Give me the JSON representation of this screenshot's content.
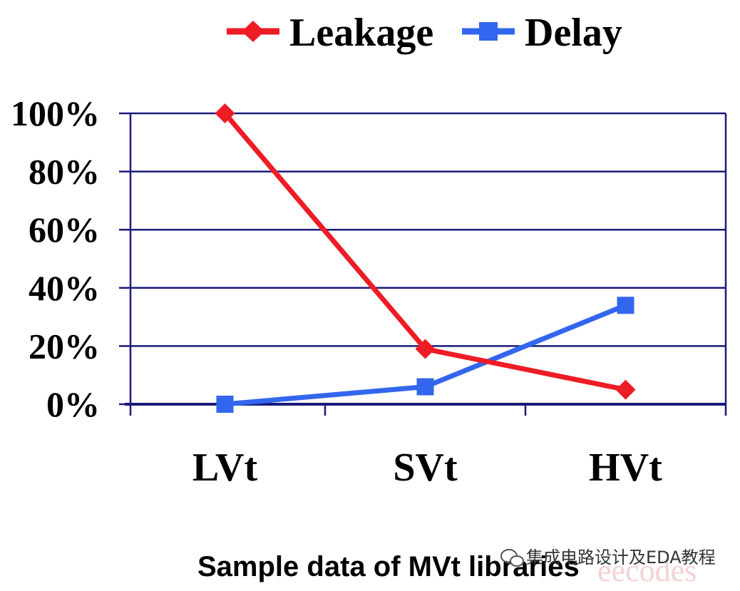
{
  "chart_data": {
    "type": "line",
    "categories": [
      "LVt",
      "SVt",
      "HVt"
    ],
    "series": [
      {
        "name": "Leakage",
        "values": [
          100,
          19,
          5
        ],
        "color": "#ee1c25",
        "marker": "diamond"
      },
      {
        "name": "Delay",
        "values": [
          0,
          6,
          34
        ],
        "color": "#3366ee",
        "marker": "square"
      }
    ],
    "ylim": [
      0,
      100
    ],
    "yticks": [
      {
        "value": 0,
        "label": "0%"
      },
      {
        "value": 20,
        "label": "20%"
      },
      {
        "value": 40,
        "label": "40%"
      },
      {
        "value": 60,
        "label": "60%"
      },
      {
        "value": 80,
        "label": "80%"
      },
      {
        "value": 100,
        "label": "100%"
      }
    ],
    "grid": true,
    "gridColor": "#1a1a7a",
    "legend": "top",
    "xlabel": "Sample data of MVt libraries"
  },
  "watermark": {
    "text": "集成电路设计及EDA教程",
    "overlay": "eecodes"
  }
}
